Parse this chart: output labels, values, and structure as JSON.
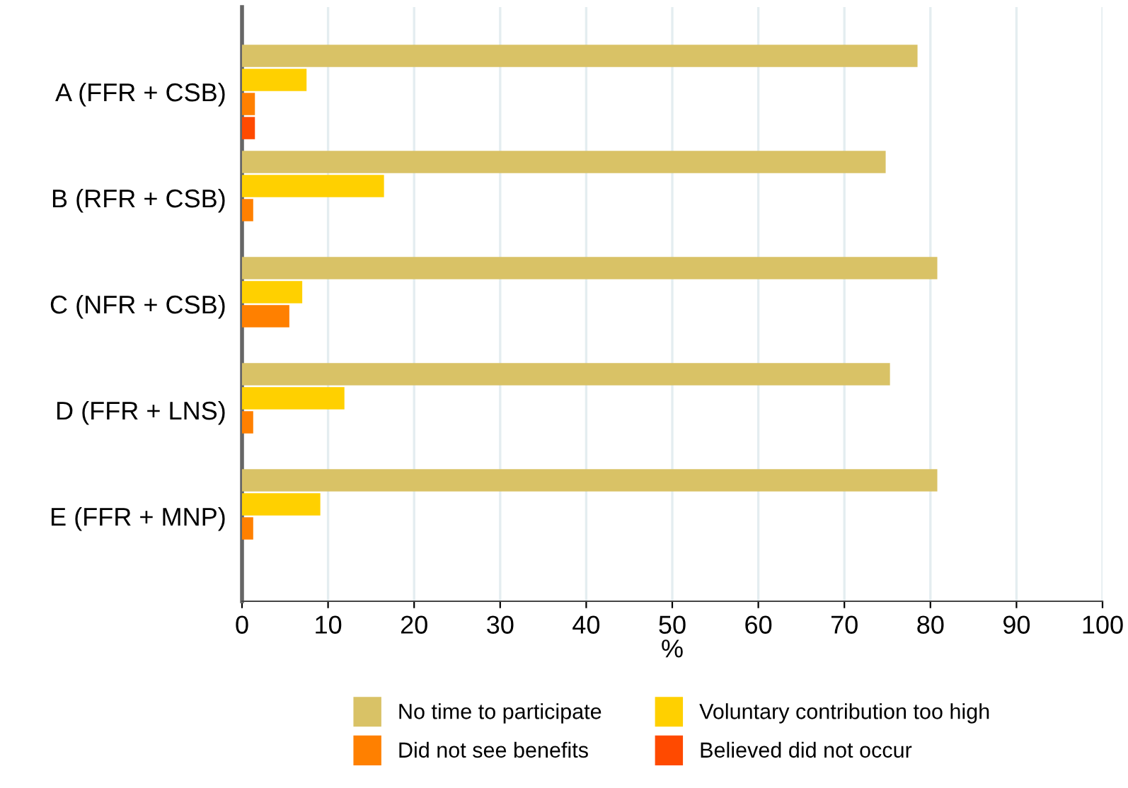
{
  "chart_data": {
    "type": "bar",
    "orientation": "horizontal",
    "xlabel": "%",
    "categories": [
      "A (FFR + CSB)",
      "B (RFR + CSB)",
      "C (NFR + CSB)",
      "D (FFR + LNS)",
      "E (FFR + MNP)"
    ],
    "series": [
      {
        "name": "No time to participate",
        "color": "#d9c266",
        "values": [
          78.5,
          74.8,
          80.8,
          75.3,
          80.8
        ]
      },
      {
        "name": "Voluntary contribution too high",
        "color": "#ffd000",
        "values": [
          7.5,
          16.5,
          7.0,
          11.9,
          9.1
        ]
      },
      {
        "name": "Did not see benefits",
        "color": "#ff8000",
        "values": [
          1.5,
          1.3,
          5.5,
          1.3,
          1.3
        ]
      },
      {
        "name": "Believed did not occur",
        "color": "#ff4a00",
        "values": [
          1.5,
          null,
          null,
          null,
          null
        ]
      }
    ],
    "xlim": [
      0,
      100
    ],
    "xticks": [
      0,
      10,
      20,
      30,
      40,
      50,
      60,
      70,
      80,
      90,
      100
    ],
    "grid": "x",
    "legend": "bottom"
  }
}
